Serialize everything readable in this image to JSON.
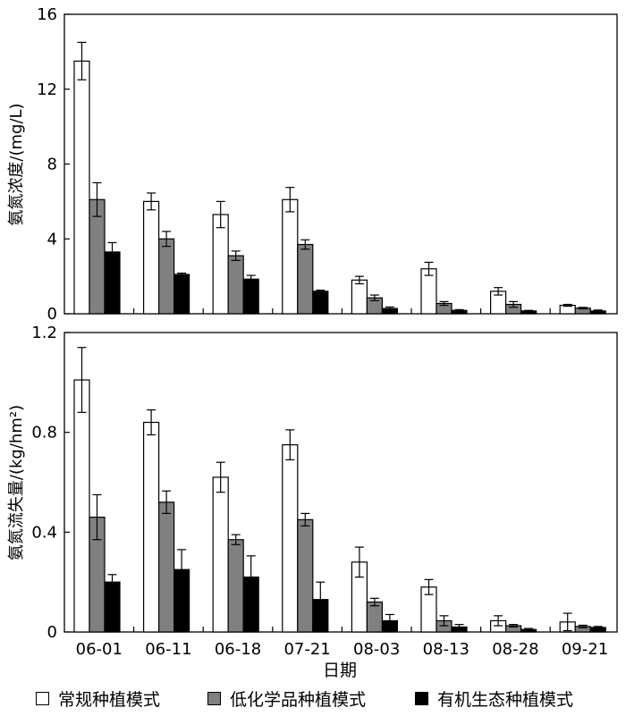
{
  "chart_data": [
    {
      "type": "bar",
      "ylabel": "氨氮浓度/(mg/L)",
      "xlabel": "",
      "ylim": [
        0,
        16
      ],
      "yticks": [
        0,
        4,
        8,
        12,
        16
      ],
      "categories": [
        "06-01",
        "06-11",
        "06-18",
        "07-21",
        "08-03",
        "08-13",
        "08-28",
        "09-21"
      ],
      "error_bars": true,
      "series": [
        {
          "name": "常规种植模式",
          "color": "#ffffff",
          "values": [
            13.5,
            6.0,
            5.3,
            6.1,
            1.8,
            2.4,
            1.2,
            0.45
          ],
          "errors": [
            1.0,
            0.45,
            0.7,
            0.65,
            0.2,
            0.35,
            0.2,
            0.05
          ]
        },
        {
          "name": "低化学品种植模式",
          "color": "#808080",
          "values": [
            6.1,
            4.0,
            3.1,
            3.7,
            0.85,
            0.55,
            0.5,
            0.3
          ],
          "errors": [
            0.9,
            0.4,
            0.25,
            0.25,
            0.15,
            0.1,
            0.15,
            0.04
          ]
        },
        {
          "name": "有机生态种植模式",
          "color": "#000000",
          "values": [
            3.3,
            2.1,
            1.85,
            1.2,
            0.28,
            0.18,
            0.15,
            0.15
          ],
          "errors": [
            0.5,
            0.07,
            0.2,
            0.06,
            0.08,
            0.04,
            0.03,
            0.05
          ]
        }
      ]
    },
    {
      "type": "bar",
      "ylabel": "氨氮流失量/(kg/hm²)",
      "xlabel": "日期",
      "ylim": [
        0,
        1.2
      ],
      "yticks": [
        0,
        0.4,
        0.8,
        1.2
      ],
      "ytick_labels": [
        "0",
        "0.4",
        "0.8",
        "1.2"
      ],
      "categories": [
        "06-01",
        "06-11",
        "06-18",
        "07-21",
        "08-03",
        "08-13",
        "08-28",
        "09-21"
      ],
      "error_bars": true,
      "series": [
        {
          "name": "常规种植模式",
          "color": "#ffffff",
          "values": [
            1.01,
            0.84,
            0.62,
            0.75,
            0.28,
            0.18,
            0.045,
            0.04
          ],
          "errors": [
            0.13,
            0.05,
            0.06,
            0.06,
            0.06,
            0.03,
            0.02,
            0.035
          ]
        },
        {
          "name": "低化学品种植模式",
          "color": "#808080",
          "values": [
            0.46,
            0.52,
            0.37,
            0.45,
            0.12,
            0.045,
            0.025,
            0.022
          ],
          "errors": [
            0.09,
            0.045,
            0.02,
            0.025,
            0.015,
            0.02,
            0.005,
            0.005
          ]
        },
        {
          "name": "有机生态种植模式",
          "color": "#000000",
          "values": [
            0.2,
            0.25,
            0.22,
            0.13,
            0.045,
            0.02,
            0.01,
            0.018
          ],
          "errors": [
            0.03,
            0.08,
            0.085,
            0.07,
            0.025,
            0.01,
            0.004,
            0.004
          ]
        }
      ]
    }
  ],
  "legend": [
    {
      "label": "常规种植模式",
      "color": "#ffffff"
    },
    {
      "label": "低化学品种植模式",
      "color": "#808080"
    },
    {
      "label": "有机生态种植模式",
      "color": "#000000"
    }
  ]
}
